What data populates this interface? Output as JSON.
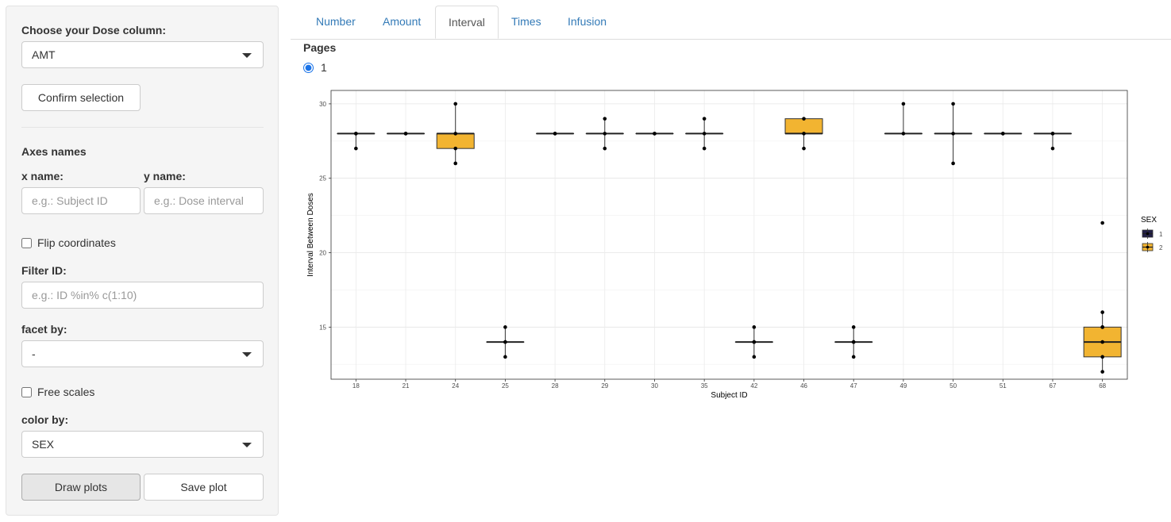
{
  "sidebar": {
    "dose_label": "Choose your Dose column:",
    "dose_value": "AMT",
    "confirm_label": "Confirm selection",
    "axes_label": "Axes names",
    "x_name_label": "x name:",
    "x_name_placeholder": "e.g.: Subject ID",
    "y_name_label": "y name:",
    "y_name_placeholder": "e.g.: Dose interval",
    "flip_label": "Flip coordinates",
    "filter_label": "Filter ID:",
    "filter_placeholder": "e.g.: ID %in% c(1:10)",
    "facet_label": "facet by:",
    "facet_value": "-",
    "free_scales_label": "Free scales",
    "color_label": "color by:",
    "color_value": "SEX",
    "draw_label": "Draw plots",
    "save_label": "Save plot"
  },
  "tabs": [
    "Number",
    "Amount",
    "Interval",
    "Times",
    "Infusion"
  ],
  "active_tab": "Interval",
  "pages": {
    "label": "Pages",
    "option": "1"
  },
  "colors": {
    "sex1": "#221f47",
    "sex2": "#f2b431"
  },
  "chart_data": {
    "type": "boxplot",
    "xlabel": "Subject ID",
    "ylabel": "Interval Between Doses",
    "ylim": [
      11.5,
      30.9
    ],
    "yticks": [
      15,
      20,
      25,
      30
    ],
    "grid": true,
    "legend": {
      "title": "SEX",
      "entries": [
        "1",
        "2"
      ],
      "placement": "right"
    },
    "categories": [
      "18",
      "21",
      "24",
      "25",
      "28",
      "29",
      "30",
      "35",
      "42",
      "46",
      "47",
      "49",
      "50",
      "51",
      "67",
      "68"
    ],
    "boxes": [
      {
        "id": "18",
        "sex": "1",
        "q1": 28,
        "median": 28,
        "q3": 28,
        "lo": 27,
        "hi": 28,
        "points": [
          28,
          28,
          27
        ]
      },
      {
        "id": "21",
        "sex": "1",
        "q1": 28,
        "median": 28,
        "q3": 28,
        "lo": 28,
        "hi": 28,
        "points": [
          28,
          28
        ]
      },
      {
        "id": "24",
        "sex": "2",
        "q1": 27,
        "median": 28,
        "q3": 28,
        "lo": 26,
        "hi": 30,
        "points": [
          30,
          28,
          27,
          26
        ]
      },
      {
        "id": "25",
        "sex": "1",
        "q1": 14,
        "median": 14,
        "q3": 14,
        "lo": 13,
        "hi": 15,
        "points": [
          15,
          14,
          14,
          13
        ]
      },
      {
        "id": "28",
        "sex": "1",
        "q1": 28,
        "median": 28,
        "q3": 28,
        "lo": 28,
        "hi": 28,
        "points": [
          28,
          28
        ]
      },
      {
        "id": "29",
        "sex": "1",
        "q1": 28,
        "median": 28,
        "q3": 28,
        "lo": 27,
        "hi": 29,
        "points": [
          29,
          28,
          27
        ]
      },
      {
        "id": "30",
        "sex": "1",
        "q1": 28,
        "median": 28,
        "q3": 28,
        "lo": 28,
        "hi": 28,
        "points": [
          28,
          28
        ]
      },
      {
        "id": "35",
        "sex": "1",
        "q1": 28,
        "median": 28,
        "q3": 28,
        "lo": 27,
        "hi": 29,
        "points": [
          29,
          28,
          27
        ]
      },
      {
        "id": "42",
        "sex": "1",
        "q1": 14,
        "median": 14,
        "q3": 14,
        "lo": 13,
        "hi": 15,
        "points": [
          15,
          14,
          14,
          13
        ]
      },
      {
        "id": "46",
        "sex": "2",
        "q1": 28,
        "median": 28,
        "q3": 29,
        "lo": 27,
        "hi": 29,
        "points": [
          29,
          28,
          27
        ]
      },
      {
        "id": "47",
        "sex": "1",
        "q1": 14,
        "median": 14,
        "q3": 14,
        "lo": 13,
        "hi": 15,
        "points": [
          15,
          14,
          14,
          13
        ]
      },
      {
        "id": "49",
        "sex": "1",
        "q1": 28,
        "median": 28,
        "q3": 28,
        "lo": 28,
        "hi": 30,
        "points": [
          30,
          28
        ]
      },
      {
        "id": "50",
        "sex": "1",
        "q1": 28,
        "median": 28,
        "q3": 28,
        "lo": 26,
        "hi": 30,
        "points": [
          30,
          28,
          26
        ]
      },
      {
        "id": "51",
        "sex": "1",
        "q1": 28,
        "median": 28,
        "q3": 28,
        "lo": 28,
        "hi": 28,
        "points": [
          28,
          28
        ]
      },
      {
        "id": "67",
        "sex": "1",
        "q1": 28,
        "median": 28,
        "q3": 28,
        "lo": 27,
        "hi": 28,
        "points": [
          28,
          28,
          27
        ]
      },
      {
        "id": "68",
        "sex": "2",
        "q1": 13,
        "median": 14,
        "q3": 15,
        "lo": 12,
        "hi": 16,
        "points": [
          22,
          16,
          15,
          15,
          14,
          13,
          12
        ]
      }
    ]
  }
}
